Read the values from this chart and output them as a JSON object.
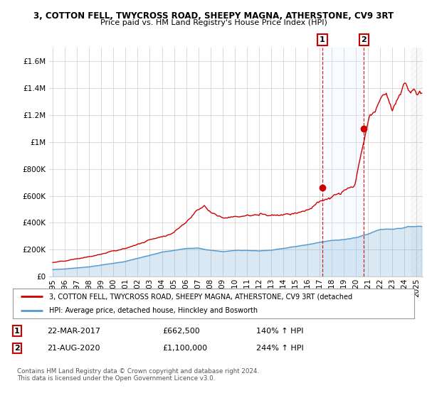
{
  "title": "3, COTTON FELL, TWYCROSS ROAD, SHEEPY MAGNA, ATHERSTONE, CV9 3RT",
  "subtitle": "Price paid vs. HM Land Registry's House Price Index (HPI)",
  "legend_line1": "3, COTTON FELL, TWYCROSS ROAD, SHEEPY MAGNA, ATHERSTONE, CV9 3RT (detached",
  "legend_line2": "HPI: Average price, detached house, Hinckley and Bosworth",
  "sale1_label": "1",
  "sale1_date": "22-MAR-2017",
  "sale1_price": "£662,500",
  "sale1_pct": "140% ↑ HPI",
  "sale2_label": "2",
  "sale2_date": "21-AUG-2020",
  "sale2_price": "£1,100,000",
  "sale2_pct": "244% ↑ HPI",
  "footer": "Contains HM Land Registry data © Crown copyright and database right 2024.\nThis data is licensed under the Open Government Licence v3.0.",
  "red_color": "#cc0000",
  "blue_color": "#5599cc",
  "blue_fill_color": "#ddeeff",
  "sale_marker_color": "#cc0000",
  "annotation_box_color": "#cc0000",
  "background_color": "#ffffff",
  "grid_color": "#cccccc",
  "ylim": [
    0,
    1700000
  ],
  "xlim_start": 1994.7,
  "xlim_end": 2025.5,
  "sale1_x": 2017.22,
  "sale1_y": 662500,
  "sale2_x": 2020.64,
  "sale2_y": 1100000,
  "hatch_start": 2024.5
}
